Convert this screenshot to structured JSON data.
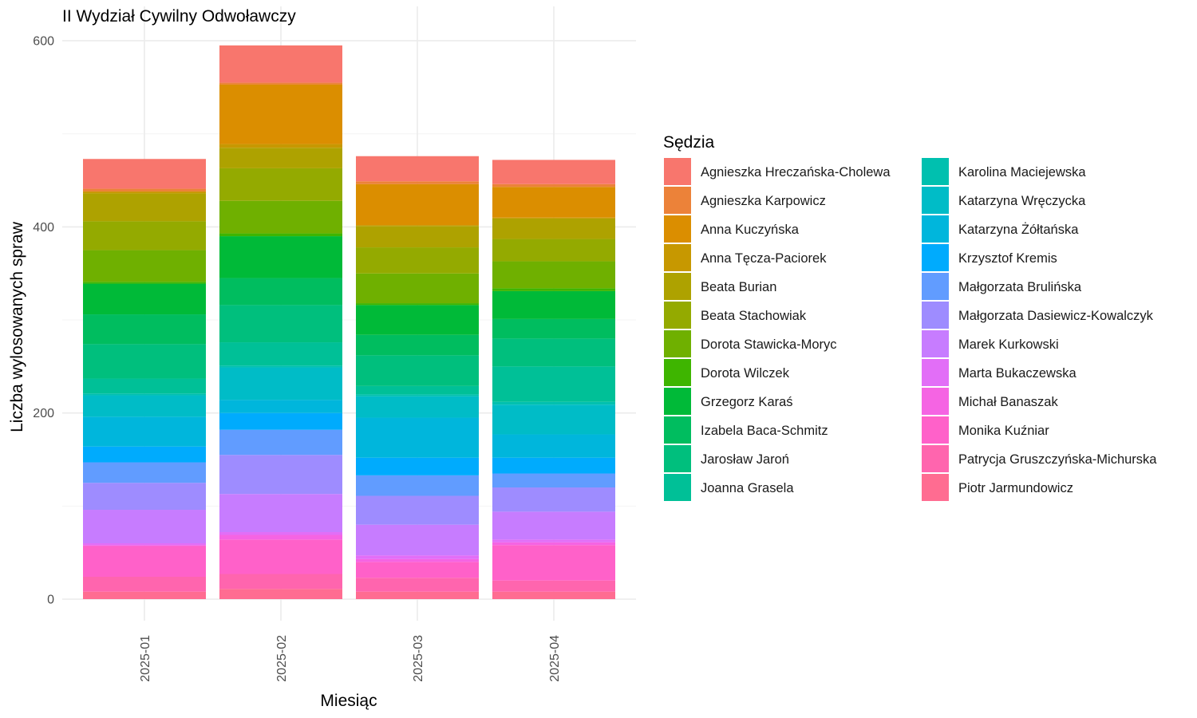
{
  "chart_data": {
    "type": "bar",
    "stacked": true,
    "title": "II Wydział Cywilny Odwoławczy",
    "xlabel": "Miesiąc",
    "ylabel": "Liczba wylosowanych spraw",
    "ylim": [
      0,
      640
    ],
    "y_ticks": [
      0,
      200,
      400,
      600
    ],
    "grid": true,
    "legend_title": "Sędzia",
    "legend_position": "right",
    "categories": [
      "2025-01",
      "2025-02",
      "2025-03",
      "2025-04"
    ],
    "series": [
      {
        "name": "Agnieszka Hreczańska-Cholewa",
        "color": "#F8766D",
        "values": [
          32,
          40,
          27,
          26
        ]
      },
      {
        "name": "Agnieszka Karpowicz",
        "color": "#EC8239",
        "values": [
          3,
          2,
          3,
          3
        ]
      },
      {
        "name": "Anna Kuczyńska",
        "color": "#DB8E00",
        "values": [
          0,
          64,
          44,
          33
        ]
      },
      {
        "name": "Anna Tęcza-Paciorek",
        "color": "#C79800",
        "values": [
          2,
          4,
          1,
          1
        ]
      },
      {
        "name": "Beata Burian",
        "color": "#AEA200",
        "values": [
          30,
          22,
          23,
          22
        ]
      },
      {
        "name": "Beata Stachowiak",
        "color": "#94AA00",
        "values": [
          31,
          35,
          28,
          24
        ]
      },
      {
        "name": "Dorota Stawicka-Moryc",
        "color": "#6FB000",
        "values": [
          34,
          35,
          32,
          29
        ]
      },
      {
        "name": "Dorota Wilczek",
        "color": "#3EB500",
        "values": [
          2,
          3,
          2,
          3
        ]
      },
      {
        "name": "Grzegorz Karaś",
        "color": "#00BA38",
        "values": [
          33,
          45,
          32,
          30
        ]
      },
      {
        "name": "Izabela Baca-Schmitz",
        "color": "#00BD5F",
        "values": [
          32,
          29,
          22,
          21
        ]
      },
      {
        "name": "Jarosław Jaroń",
        "color": "#00BF7D",
        "values": [
          37,
          40,
          33,
          30
        ]
      },
      {
        "name": "Joanna Grasela",
        "color": "#00C097",
        "values": [
          16,
          25,
          9,
          38
        ]
      },
      {
        "name": "Karolina Maciejewska",
        "color": "#00C0AF",
        "values": [
          2,
          2,
          2,
          3
        ]
      },
      {
        "name": "Katarzyna Wręczycka",
        "color": "#00BCC7",
        "values": [
          23,
          35,
          23,
          32
        ]
      },
      {
        "name": "Katarzyna Żółtańska",
        "color": "#00B6DC",
        "values": [
          32,
          14,
          43,
          25
        ]
      },
      {
        "name": "Krzysztof Kremis",
        "color": "#00ABFD",
        "values": [
          17,
          18,
          19,
          17
        ]
      },
      {
        "name": "Małgorzata Brulińska",
        "color": "#619CFF",
        "values": [
          22,
          27,
          22,
          15
        ]
      },
      {
        "name": "Małgorzata Dasiewicz-Kowalczyk",
        "color": "#9E8CFF",
        "values": [
          29,
          42,
          31,
          26
        ]
      },
      {
        "name": "Marek Kurkowski",
        "color": "#C77CFF",
        "values": [
          36,
          41,
          33,
          30
        ]
      },
      {
        "name": "Marta Bukaczewska",
        "color": "#E26EF7",
        "values": [
          2,
          3,
          4,
          3
        ]
      },
      {
        "name": "Michał Banaszak",
        "color": "#F564E3",
        "values": [
          1,
          5,
          3,
          3
        ]
      },
      {
        "name": "Monika Kuźniar",
        "color": "#FF61C9",
        "values": [
          33,
          37,
          17,
          38
        ]
      },
      {
        "name": "Patrycja Gruszczyńska-Michurska",
        "color": "#FF65AE",
        "values": [
          16,
          16,
          15,
          12
        ]
      },
      {
        "name": "Piotr Jarmundowicz",
        "color": "#FF6C91",
        "values": [
          8,
          11,
          8,
          8
        ]
      }
    ]
  }
}
